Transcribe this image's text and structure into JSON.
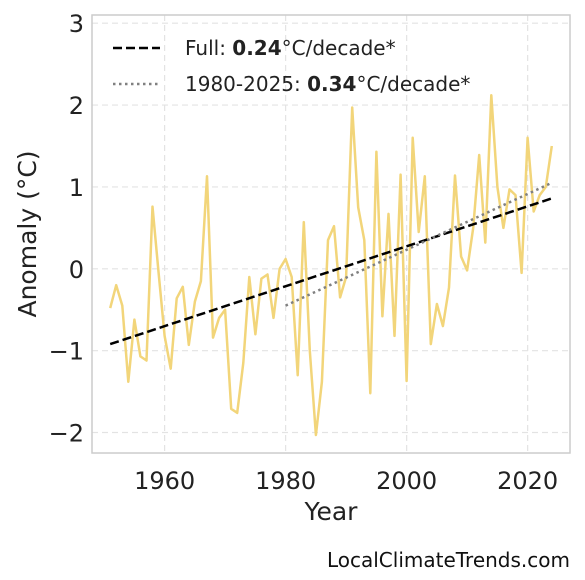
{
  "chart_data": {
    "type": "line",
    "title": "",
    "xlabel": "Year",
    "ylabel": "Anomaly (°C)",
    "xlim": [
      1948,
      2027
    ],
    "ylim": [
      -2.25,
      3.1
    ],
    "xticks": [
      1960,
      1980,
      2000,
      2020
    ],
    "yticks": [
      -2,
      -1,
      0,
      1,
      2,
      3
    ],
    "ytick_labels": [
      "−2",
      "−1",
      "0",
      "1",
      "2",
      "3"
    ],
    "grid": true,
    "legend_position": "top-left",
    "series": [
      {
        "style": "line",
        "color": "#f2d57a",
        "x": [
          1951,
          1952,
          1953,
          1954,
          1955,
          1956,
          1957,
          1958,
          1959,
          1960,
          1961,
          1962,
          1963,
          1964,
          1965,
          1966,
          1967,
          1968,
          1969,
          1970,
          1971,
          1972,
          1973,
          1974,
          1975,
          1976,
          1977,
          1978,
          1979,
          1980,
          1981,
          1982,
          1983,
          1984,
          1985,
          1986,
          1987,
          1988,
          1989,
          1990,
          1991,
          1992,
          1993,
          1994,
          1995,
          1996,
          1997,
          1998,
          1999,
          2000,
          2001,
          2002,
          2003,
          2004,
          2005,
          2006,
          2007,
          2008,
          2009,
          2010,
          2011,
          2012,
          2013,
          2014,
          2015,
          2016,
          2017,
          2018,
          2019,
          2020,
          2021,
          2022,
          2023,
          2024
        ],
        "y": [
          -0.48,
          -0.2,
          -0.45,
          -1.38,
          -0.62,
          -1.07,
          -1.12,
          0.76,
          -0.05,
          -0.82,
          -1.22,
          -0.36,
          -0.22,
          -0.93,
          -0.4,
          -0.15,
          1.13,
          -0.84,
          -0.6,
          -0.5,
          -1.71,
          -1.76,
          -1.15,
          -0.1,
          -0.8,
          -0.12,
          -0.07,
          -0.6,
          0.0,
          0.12,
          -0.1,
          -1.3,
          0.57,
          -1.0,
          -2.03,
          -1.38,
          0.35,
          0.52,
          -0.35,
          -0.1,
          1.97,
          0.75,
          0.35,
          -1.52,
          1.43,
          -0.58,
          0.67,
          -0.82,
          1.15,
          -1.37,
          1.6,
          0.45,
          1.13,
          -0.92,
          -0.43,
          -0.7,
          -0.23,
          1.14,
          0.15,
          -0.02,
          0.5,
          1.39,
          0.32,
          2.12,
          1.0,
          0.5,
          0.97,
          0.9,
          -0.05,
          1.6,
          0.7,
          0.9,
          1.0,
          1.5
        ]
      },
      {
        "name": "Full",
        "style": "dashed",
        "color": "#000000",
        "x": [
          1951,
          2024
        ],
        "y": [
          -0.92,
          0.86
        ]
      },
      {
        "name": "1980-2025",
        "style": "dotted",
        "color": "#808080",
        "x": [
          1980,
          2024
        ],
        "y": [
          -0.45,
          1.05
        ]
      }
    ],
    "legend": [
      {
        "prefix": "Full: ",
        "value": "0.24",
        "suffix": "°C/decade*",
        "style": "dashed",
        "color": "#000000"
      },
      {
        "prefix": "1980-2025: ",
        "value": "0.34",
        "suffix": "°C/decade*",
        "style": "dotted",
        "color": "#808080"
      }
    ]
  },
  "credit": "LocalClimateTrends.com"
}
